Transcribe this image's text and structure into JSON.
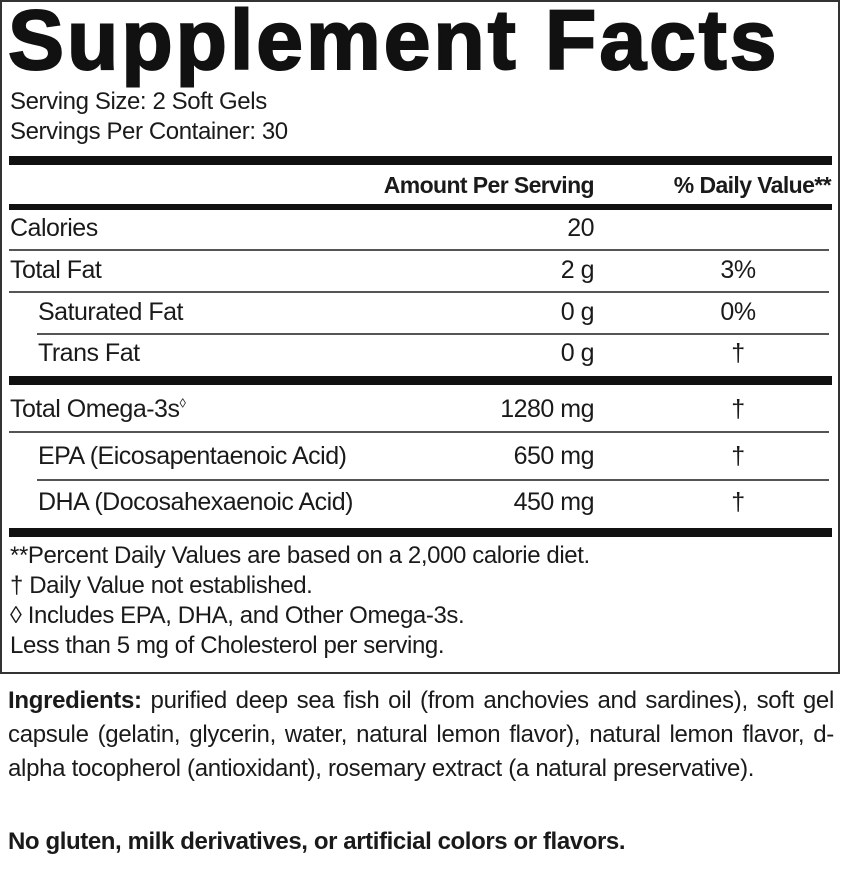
{
  "title": "Supplement Facts",
  "serving_size": "Serving Size: 2 Soft Gels",
  "servings_per_container": "Servings Per Container: 30",
  "header": {
    "amount": "Amount Per Serving",
    "daily_value": "% Daily Value**"
  },
  "rows": [
    {
      "label": "Calories",
      "amount": "20",
      "dv": ""
    },
    {
      "label": "Total Fat",
      "amount": "2 g",
      "dv": "3%"
    },
    {
      "label": "Saturated Fat",
      "amount": "0 g",
      "dv": "0%"
    },
    {
      "label": "Trans Fat",
      "amount": "0 g",
      "dv": "†"
    },
    {
      "label": "Total Omega-3s",
      "marker": "◊",
      "amount": "1280 mg",
      "dv": "†"
    },
    {
      "label": "EPA (Eicosapentaenoic Acid)",
      "amount": "650 mg",
      "dv": "†"
    },
    {
      "label": "DHA (Docosahexaenoic Acid)",
      "amount": "450 mg",
      "dv": "†"
    }
  ],
  "footnotes": [
    "**Percent Daily Values are based on a 2,000 calorie diet.",
    "† Daily Value not established.",
    "◊ Includes EPA, DHA, and Other Omega-3s.",
    "Less than 5 mg of Cholesterol per serving."
  ],
  "ingredients": {
    "label": "Ingredients:",
    "text": "purified deep sea fish oil (from anchovies and sardines), soft gel capsule (gelatin, glycerin, water, natural lemon flavor), natural lemon flavor, d-alpha tocopherol (antioxidant), rosemary extract (a natural preservative)."
  },
  "free_from": "No gluten, milk derivatives, or artificial colors or flavors."
}
